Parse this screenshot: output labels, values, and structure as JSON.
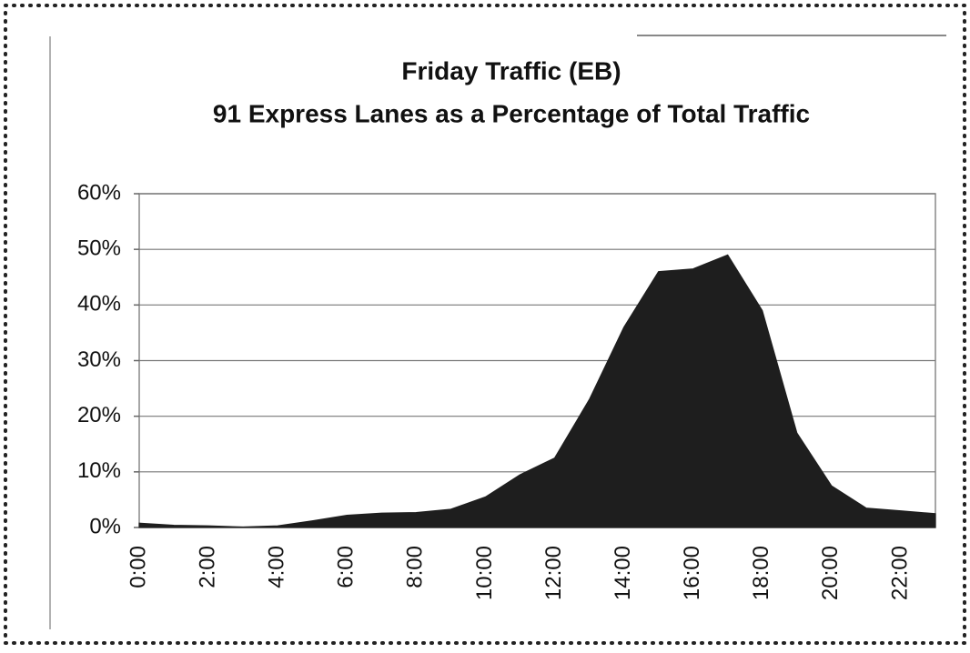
{
  "chart_data": {
    "type": "area",
    "title": "Friday Traffic (EB)",
    "subtitle": "91 Express Lanes as a Percentage of Total Traffic",
    "categories": [
      "0:00",
      null,
      "2:00",
      null,
      "4:00",
      null,
      "6:00",
      null,
      "8:00",
      null,
      "10:00",
      null,
      "12:00",
      null,
      "14:00",
      null,
      "16:00",
      null,
      "18:00",
      null,
      "20:00",
      null,
      "22:00",
      null
    ],
    "values": [
      0.8,
      0.4,
      0.3,
      0.1,
      0.3,
      1.2,
      2.2,
      2.6,
      2.7,
      3.3,
      5.5,
      9.5,
      12.5,
      23,
      36,
      46,
      46.5,
      49,
      39,
      17,
      7.5,
      3.5,
      3,
      2.5
    ],
    "color": "#1e1e1e",
    "ylim": [
      0,
      60
    ],
    "yticks": [
      {
        "value": 0,
        "label": "0%"
      },
      {
        "value": 10,
        "label": "10%"
      },
      {
        "value": 20,
        "label": "20%"
      },
      {
        "value": 30,
        "label": "30%"
      },
      {
        "value": 40,
        "label": "40%"
      },
      {
        "value": 50,
        "label": "50%"
      },
      {
        "value": 60,
        "label": "60%"
      }
    ],
    "grid": true
  }
}
